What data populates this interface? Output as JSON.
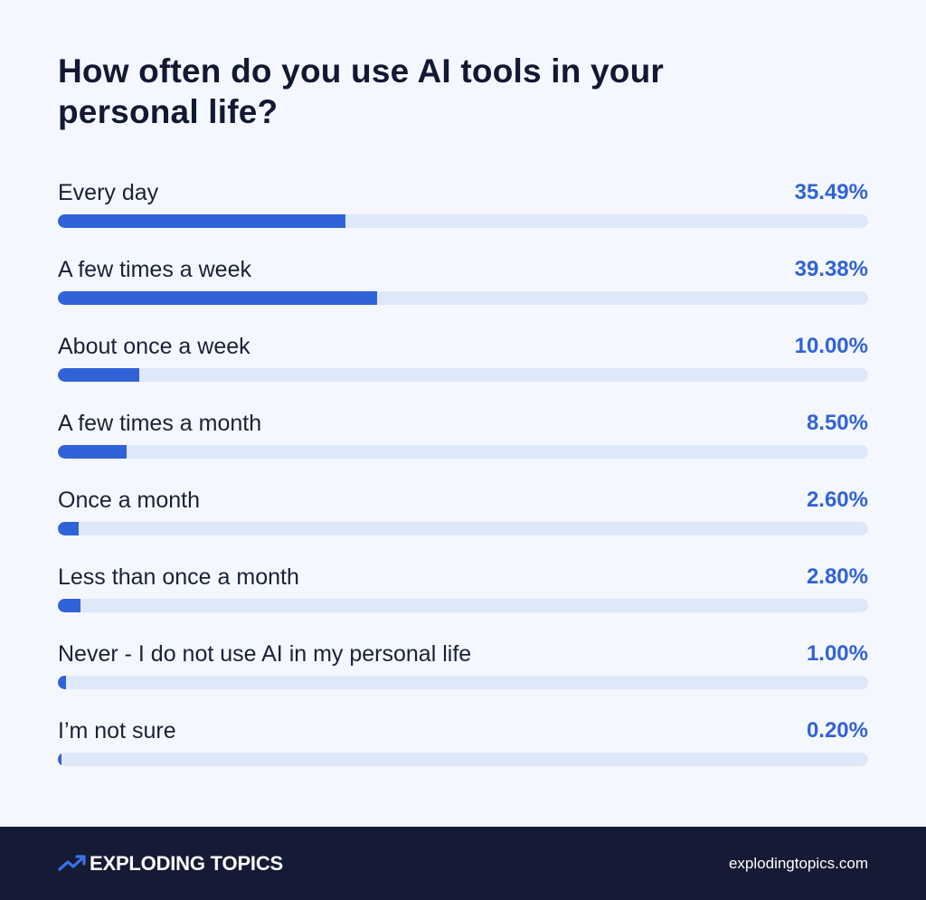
{
  "chart_data": {
    "type": "bar",
    "orientation": "horizontal",
    "title": "How often do you use AI tools in your personal life?",
    "categories": [
      "Every day",
      "A few times a week",
      "About once a week",
      "A few times a month",
      "Once a month",
      "Less than once a month",
      "Never - I do not use AI in my personal life",
      "I’m not sure"
    ],
    "values": [
      35.49,
      39.38,
      10.0,
      8.5,
      2.6,
      2.8,
      1.0,
      0.2
    ],
    "value_labels": [
      "35.49%",
      "39.38%",
      "10.00%",
      "8.50%",
      "2.60%",
      "2.80%",
      "1.00%",
      "0.20%"
    ],
    "xlim": [
      0,
      100
    ],
    "grid": false,
    "legend": "none"
  },
  "footer": {
    "brand": "EXPLODING TOPICS",
    "site": "explodingtopics.com"
  },
  "colors": {
    "accent": "#3163d8",
    "track": "#dfe8f9",
    "background": "#f4f8fe",
    "footer_background": "#151b34",
    "logo_accent": "#3b72e8",
    "text_dark": "#111933",
    "text_light": "#ffffff"
  },
  "icons": {
    "brand_logo": "trending-up-arrow-icon"
  }
}
